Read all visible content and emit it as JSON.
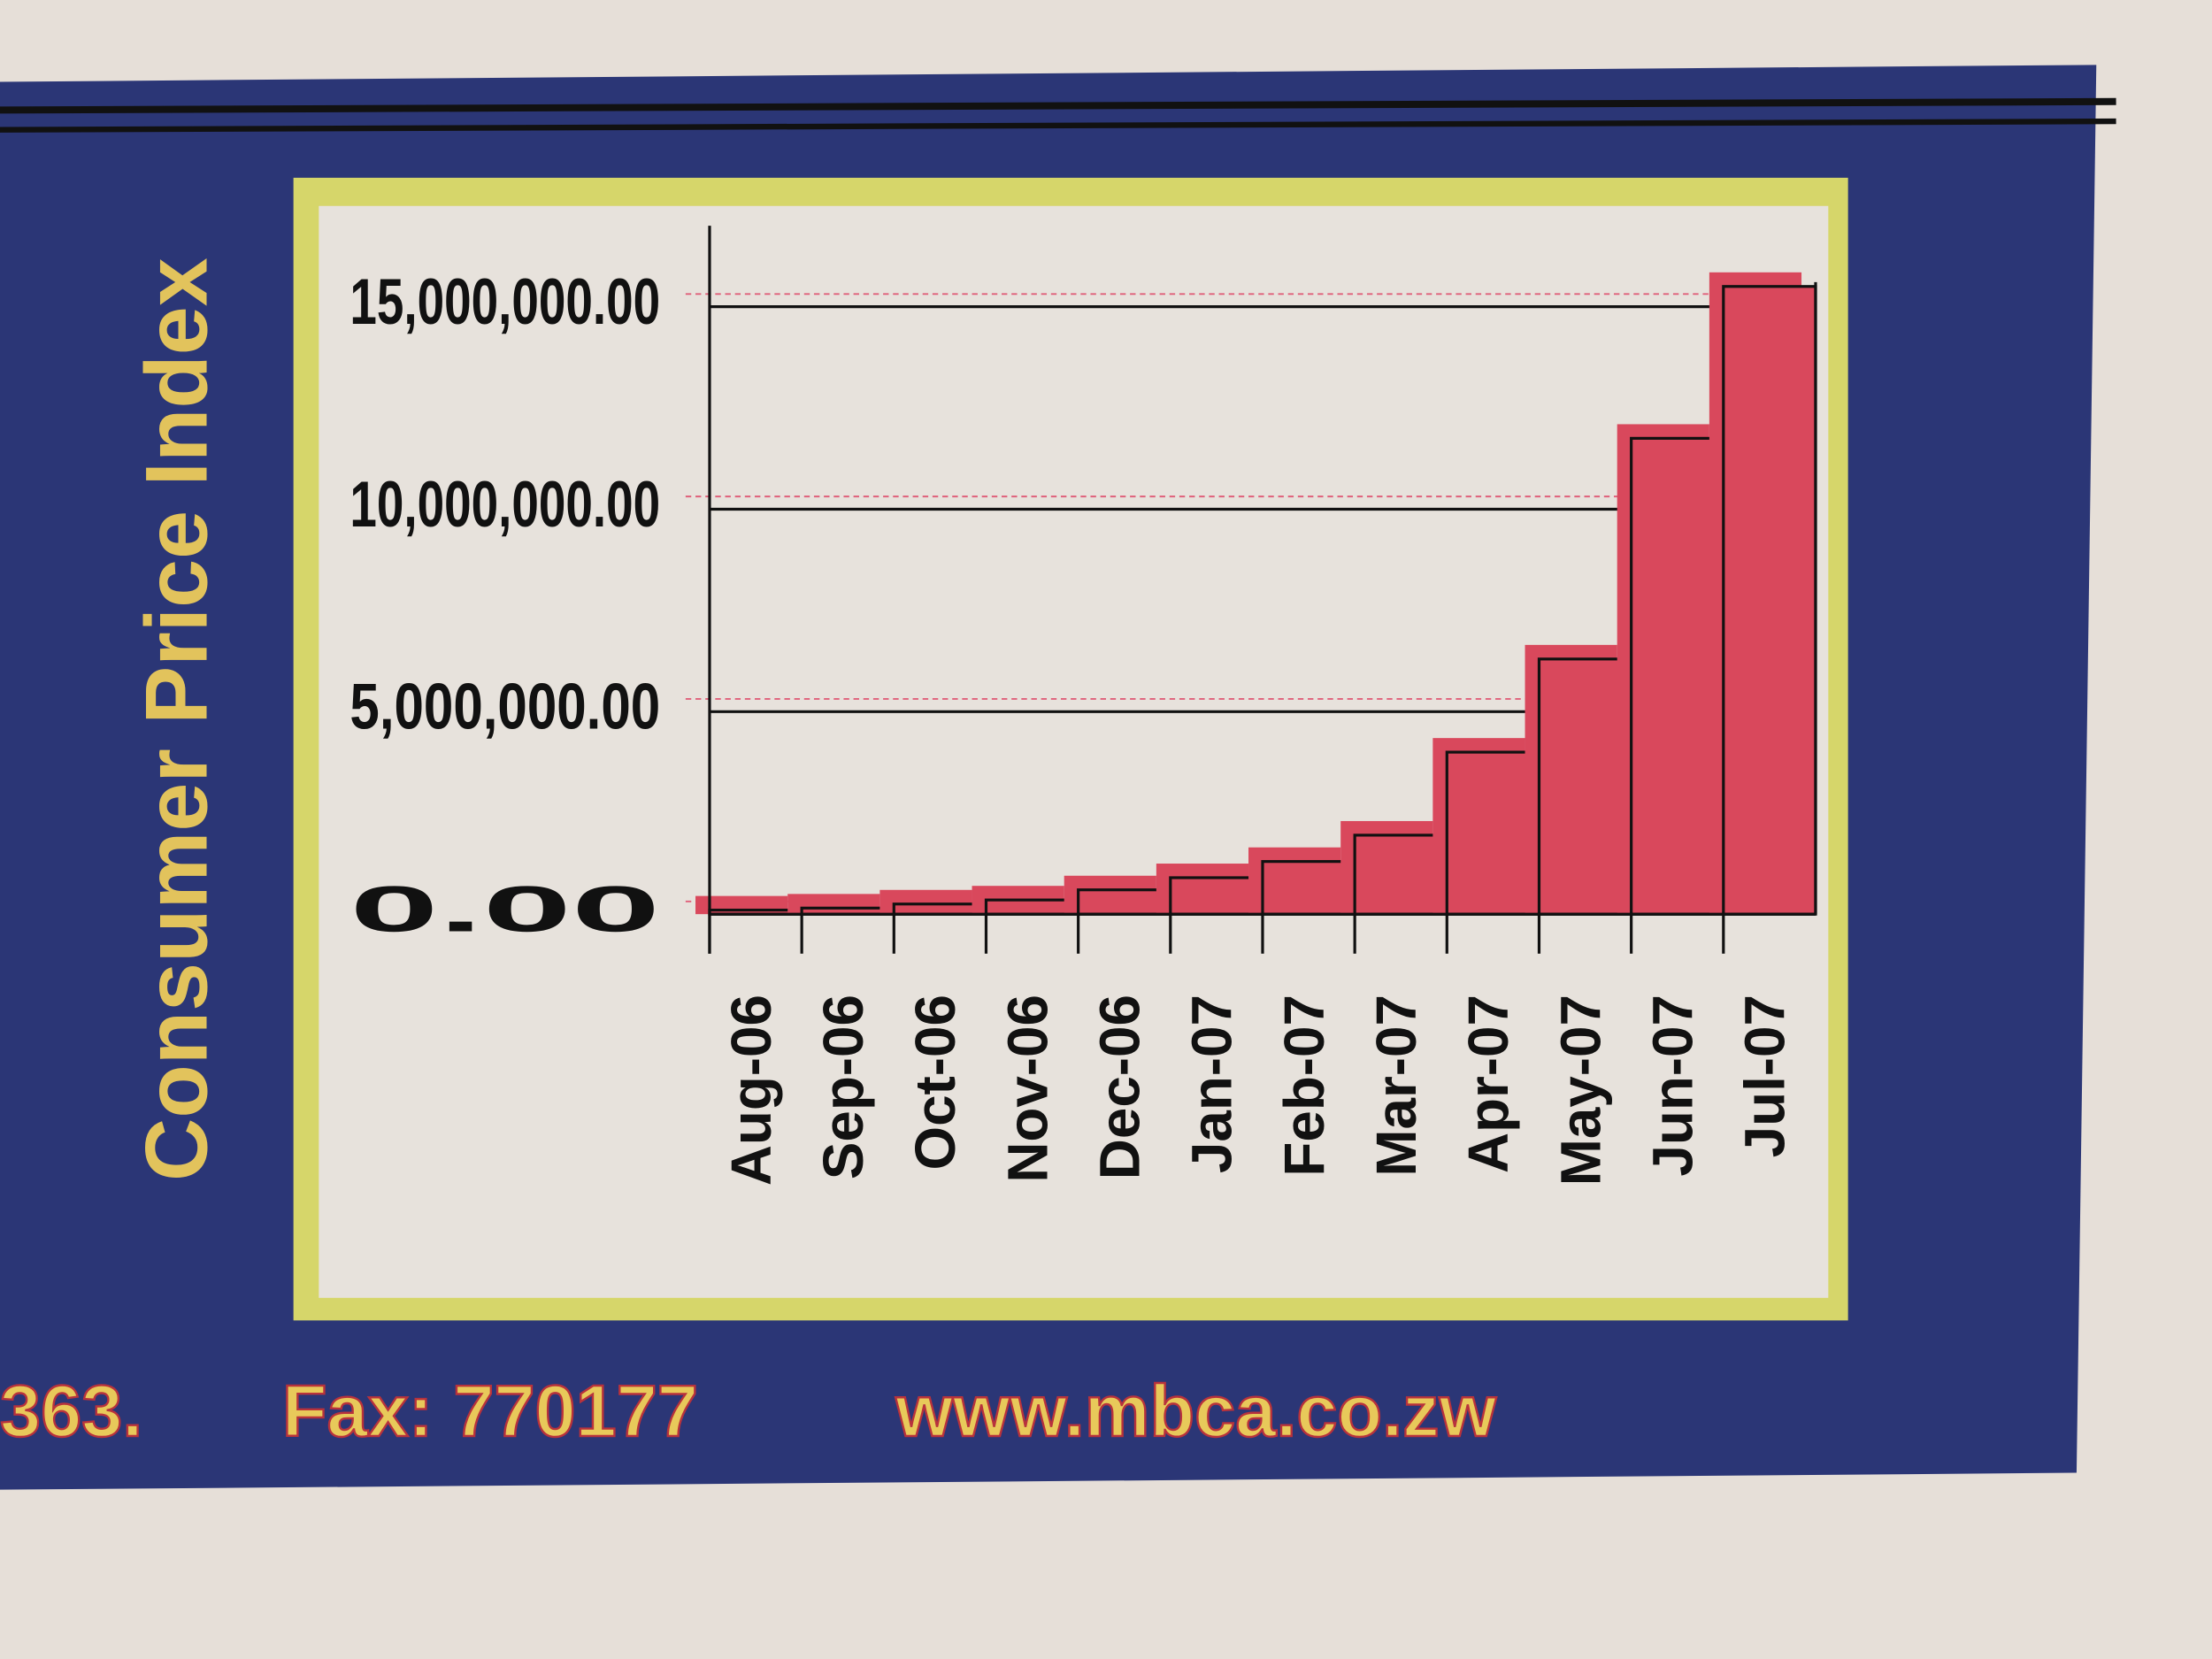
{
  "chart_data": {
    "type": "bar",
    "title": "Consumer Price Index",
    "categories": [
      "Aug-06",
      "Sep-06",
      "Oct-06",
      "Nov-06",
      "Dec-06",
      "Jan-07",
      "Feb-07",
      "Mar-07",
      "Apr-07",
      "May-07",
      "Jun-07",
      "Jul-07"
    ],
    "values": [
      100000,
      150000,
      250000,
      350000,
      600000,
      900000,
      1300000,
      1950000,
      4000000,
      6300000,
      11750000,
      15500000
    ],
    "color": "#d9485c",
    "ylim": [
      0,
      17000000
    ],
    "yticks": [
      {
        "value": 0,
        "label": "0.00"
      },
      {
        "value": 5000000,
        "label": "5,000,000.00"
      },
      {
        "value": 10000000,
        "label": "10,000,000.00"
      },
      {
        "value": 15000000,
        "label": "15,000,000.00"
      }
    ],
    "grid": true
  },
  "footer": {
    "phone_fragment": "363.",
    "fax": "Fax: 770177",
    "website": "www.mbca.co.zw"
  }
}
